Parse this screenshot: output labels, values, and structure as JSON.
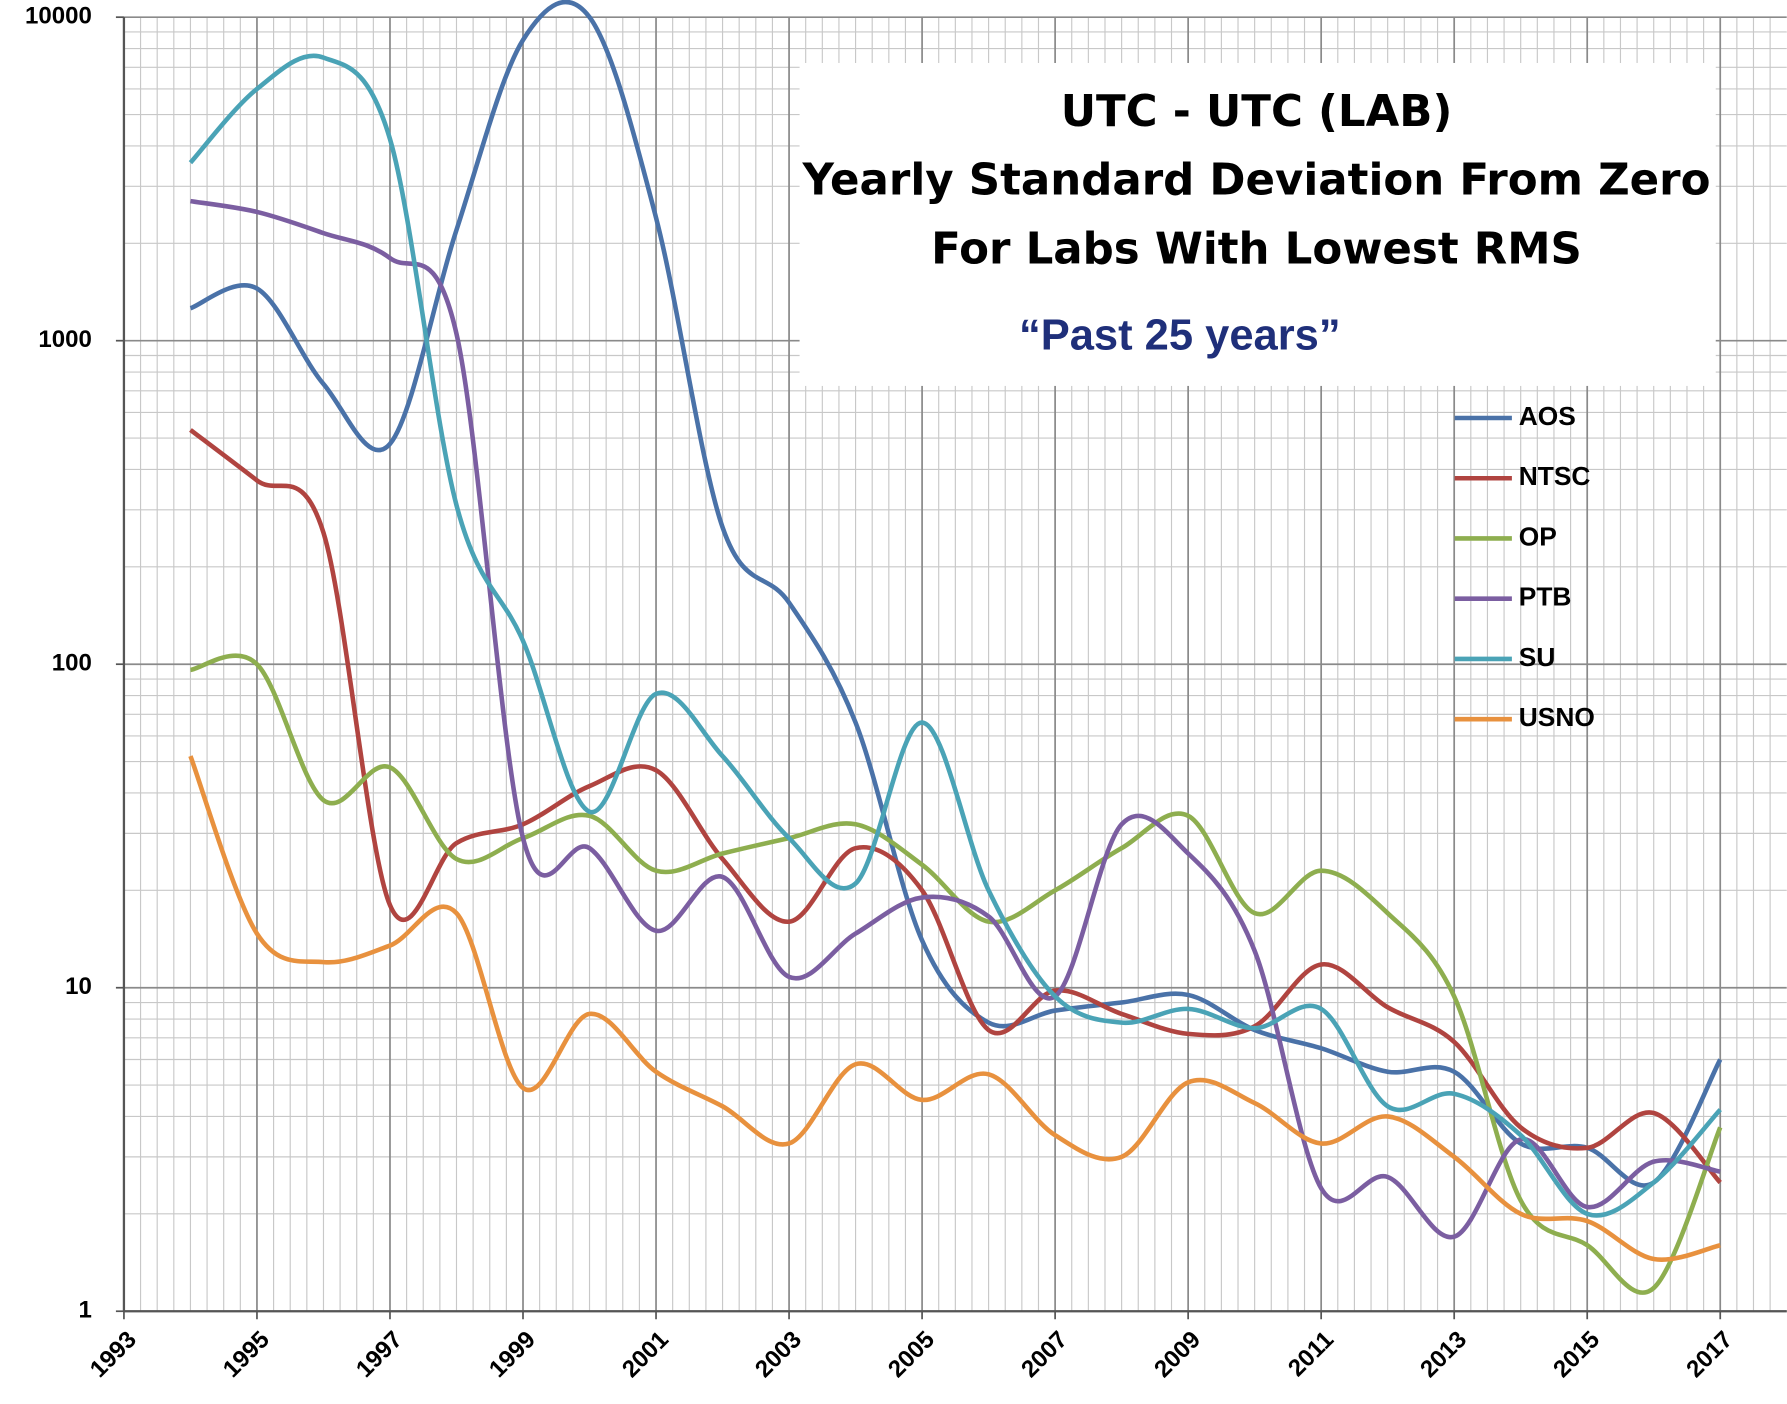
{
  "chart_data": {
    "type": "line",
    "title": [
      "UTC - UTC (LAB)",
      "Yearly Standard Deviation From Zero",
      "For Labs With Lowest RMS"
    ],
    "subtitle": "“Past 25 years”",
    "x": [
      1994,
      1995,
      1996,
      1997,
      1998,
      1999,
      2000,
      2001,
      2002,
      2003,
      2004,
      2005,
      2006,
      2007,
      2008,
      2009,
      2010,
      2011,
      2012,
      2013,
      2014,
      2015,
      2016,
      2017
    ],
    "series": [
      {
        "name": "AOS",
        "color": "#4a72a8",
        "values": [
          1260,
          1450,
          735,
          480,
          2200,
          8500,
          10000,
          2400,
          265,
          155,
          66,
          14,
          7.8,
          8.5,
          9,
          9.5,
          7.4,
          6.5,
          5.5,
          5.5,
          3.3,
          3.2,
          2.5,
          6
        ]
      },
      {
        "name": "NTSC",
        "color": "#b04440",
        "values": [
          530,
          370,
          255,
          18,
          28,
          32,
          42,
          47,
          25,
          16,
          27,
          20,
          7.4,
          9.8,
          8.3,
          7.2,
          7.6,
          11.8,
          8.7,
          6.8,
          3.7,
          3.2,
          4.1,
          2.5
        ]
      },
      {
        "name": "OP",
        "color": "#8eae4f",
        "values": [
          96,
          100,
          38,
          48,
          25,
          29,
          34,
          23,
          26,
          29,
          32,
          24,
          16,
          20,
          27,
          34,
          17,
          23,
          17,
          9.4,
          2.2,
          1.6,
          1.18,
          3.7
        ]
      },
      {
        "name": "PTB",
        "color": "#7b5ea1",
        "values": [
          2700,
          2500,
          2150,
          1800,
          1050,
          29,
          27,
          15,
          22,
          10.8,
          14.7,
          19,
          16.6,
          9.4,
          32,
          26,
          13,
          2.4,
          2.6,
          1.7,
          3.4,
          2.1,
          2.9,
          2.7
        ]
      },
      {
        "name": "SU",
        "color": "#4aa3b6",
        "values": [
          3550,
          6000,
          7500,
          4200,
          310,
          118,
          35,
          81,
          52,
          29,
          21,
          66,
          20,
          9.4,
          7.8,
          8.6,
          7.5,
          8.6,
          4.3,
          4.7,
          3.5,
          2.0,
          2.5,
          4.2
        ]
      },
      {
        "name": "USNO",
        "color": "#e8913e",
        "values": [
          52,
          14.7,
          12,
          13.5,
          17,
          4.9,
          8.3,
          5.5,
          4.3,
          3.3,
          5.8,
          4.5,
          5.4,
          3.5,
          3.0,
          5.1,
          4.4,
          3.3,
          4.0,
          3.0,
          2.0,
          1.9,
          1.45,
          1.6
        ]
      }
    ],
    "xlim": [
      1993,
      2018
    ],
    "xticks": [
      1993,
      1995,
      1997,
      1999,
      2001,
      2003,
      2005,
      2007,
      2009,
      2011,
      2013,
      2015,
      2017
    ],
    "ylim": [
      1,
      10000
    ],
    "yticks": [
      1,
      10,
      100,
      1000,
      10000
    ],
    "yscale": "log",
    "grid": true,
    "minor_grid": true,
    "legend": "upper right"
  }
}
